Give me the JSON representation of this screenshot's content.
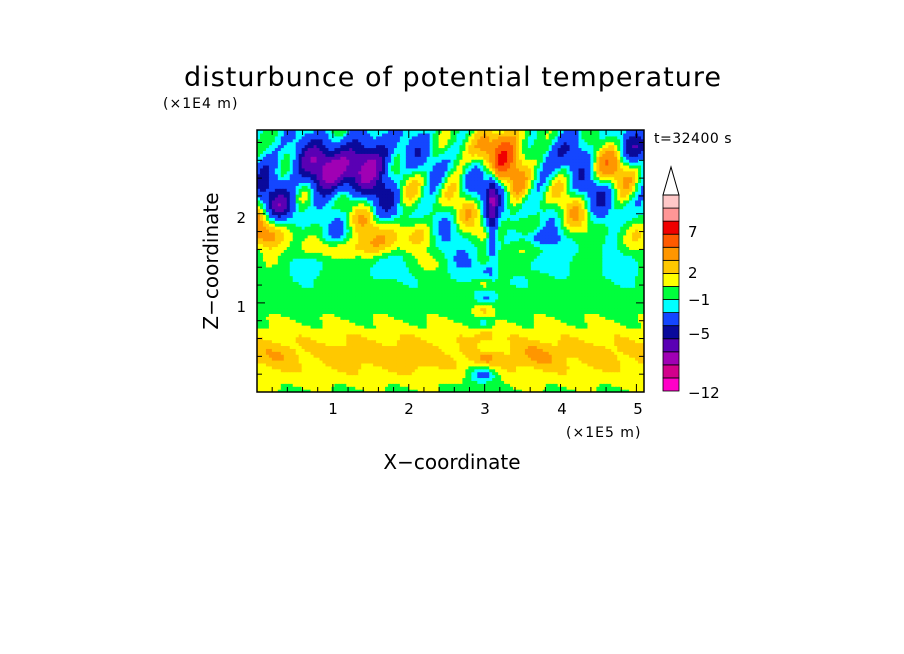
{
  "chart_data": {
    "type": "heatmap",
    "title": "disturbunce of potential temperature",
    "xlabel": "X−coordinate",
    "ylabel": "Z−coordinate",
    "x_unit": "(×1E5 m)",
    "y_unit": "(×1E4 m)",
    "time_label": "t=32400 s",
    "xlim": [
      0,
      5.1
    ],
    "ylim": [
      0,
      2.94
    ],
    "x_ticks": [
      "1",
      "2",
      "3",
      "4",
      "5"
    ],
    "y_ticks": [
      "1",
      "2"
    ],
    "colorbar": {
      "levels": [
        -12,
        -11,
        -9,
        -7,
        -5,
        -3,
        -1,
        0,
        1,
        2,
        3,
        5,
        7,
        9,
        11
      ],
      "colors": [
        "#ff00c8",
        "#d2008c",
        "#a000b4",
        "#5a00b4",
        "#0a0a9b",
        "#1446ff",
        "#00ffff",
        "#00ff3c",
        "#ffff00",
        "#ffc800",
        "#ff9600",
        "#ff5a00",
        "#f00000",
        "#ff9696",
        "#ffc8c8"
      ],
      "labels": [
        "−12",
        "−5",
        "−1",
        "2",
        "7"
      ],
      "extend": "max"
    }
  }
}
